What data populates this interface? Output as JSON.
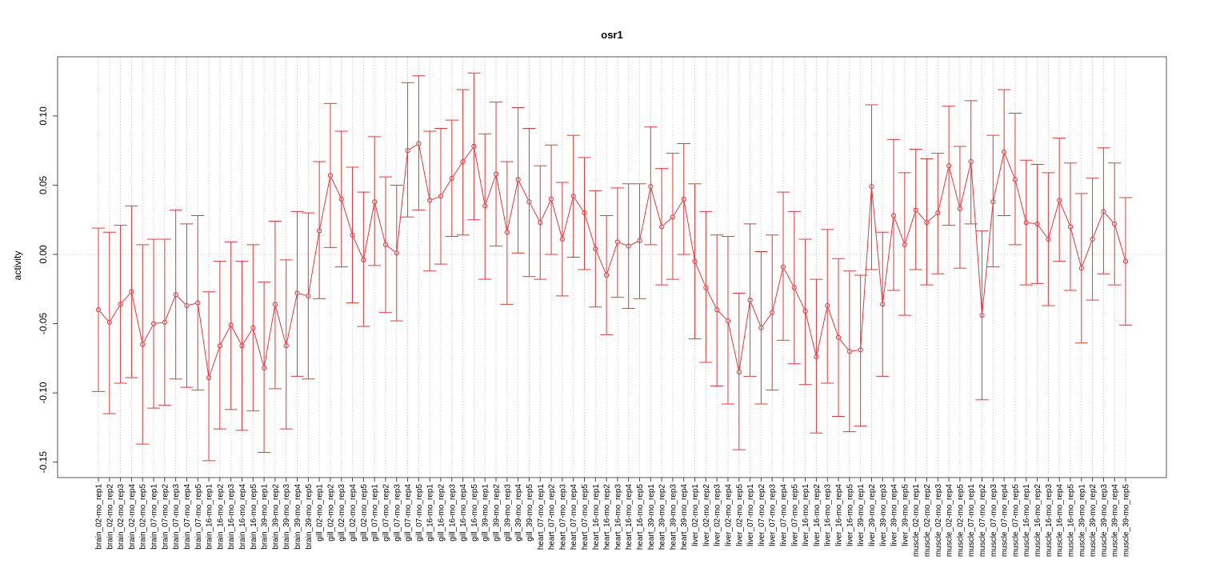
{
  "chart_data": {
    "type": "line",
    "title": "osr1",
    "xlabel": "",
    "ylabel": "activity",
    "ylim": [
      -0.16,
      0.14
    ],
    "yticks": [
      -0.15,
      -0.1,
      -0.05,
      0.0,
      0.05,
      0.1
    ],
    "ytick_labels": [
      "-0.15",
      "-0.10",
      "-0.05",
      "0.00",
      "0.05",
      "0.10"
    ],
    "grid": true,
    "legend": "none",
    "series_color": "#e8373c",
    "categories": [
      "brain_02-mo_rep1",
      "brain_02-mo_rep2",
      "brain_02-mo_rep3",
      "brain_02-mo_rep4",
      "brain_02-mo_rep5",
      "brain_07-mo_rep1",
      "brain_07-mo_rep2",
      "brain_07-mo_rep3",
      "brain_07-mo_rep4",
      "brain_07-mo_rep5",
      "brain_16-mo_rep1",
      "brain_16-mo_rep2",
      "brain_16-mo_rep3",
      "brain_16-mo_rep4",
      "brain_16-mo_rep5",
      "brain_39-mo_rep1",
      "brain_39-mo_rep2",
      "brain_39-mo_rep3",
      "brain_39-mo_rep4",
      "brain_39-mo_rep5",
      "gill_02-mo_rep1",
      "gill_02-mo_rep2",
      "gill_02-mo_rep3",
      "gill_02-mo_rep4",
      "gill_02-mo_rep5",
      "gill_07-mo_rep1",
      "gill_07-mo_rep2",
      "gill_07-mo_rep3",
      "gill_07-mo_rep4",
      "gill_07-mo_rep5",
      "gill_16-mo_rep1",
      "gill_16-mo_rep2",
      "gill_16-mo_rep3",
      "gill_16-mo_rep4",
      "gill_16-mo_rep5",
      "gill_39-mo_rep1",
      "gill_39-mo_rep2",
      "gill_39-mo_rep3",
      "gill_39-mo_rep4",
      "gill_39-mo_rep5",
      "heart_07-mo_rep1",
      "heart_07-mo_rep2",
      "heart_07-mo_rep3",
      "heart_07-mo_rep4",
      "heart_07-mo_rep5",
      "heart_16-mo_rep1",
      "heart_16-mo_rep2",
      "heart_16-mo_rep3",
      "heart_16-mo_rep4",
      "heart_16-mo_rep5",
      "heart_39-mo_rep1",
      "heart_39-mo_rep2",
      "heart_39-mo_rep3",
      "heart_39-mo_rep4",
      "liver_02-mo_rep1",
      "liver_02-mo_rep2",
      "liver_02-mo_rep3",
      "liver_02-mo_rep4",
      "liver_02-mo_rep5",
      "liver_07-mo_rep1",
      "liver_07-mo_rep2",
      "liver_07-mo_rep3",
      "liver_07-mo_rep4",
      "liver_07-mo_rep5",
      "liver_16-mo_rep1",
      "liver_16-mo_rep2",
      "liver_16-mo_rep3",
      "liver_16-mo_rep4",
      "liver_16-mo_rep5",
      "liver_39-mo_rep1",
      "liver_39-mo_rep2",
      "liver_39-mo_rep3",
      "liver_39-mo_rep4",
      "liver_39-mo_rep5",
      "muscle_02-mo_rep1",
      "muscle_02-mo_rep2",
      "muscle_02-mo_rep3",
      "muscle_02-mo_rep4",
      "muscle_02-mo_rep5",
      "muscle_07-mo_rep1",
      "muscle_07-mo_rep2",
      "muscle_07-mo_rep3",
      "muscle_07-mo_rep4",
      "muscle_07-mo_rep5",
      "muscle_16-mo_rep1",
      "muscle_16-mo_rep2",
      "muscle_16-mo_rep3",
      "muscle_16-mo_rep4",
      "muscle_16-mo_rep5",
      "muscle_39-mo_rep1",
      "muscle_39-mo_rep2",
      "muscle_39-mo_rep3",
      "muscle_39-mo_rep4",
      "muscle_39-mo_rep5"
    ],
    "values": [
      -0.04,
      -0.049,
      -0.036,
      -0.027,
      -0.065,
      -0.05,
      -0.049,
      -0.029,
      -0.037,
      -0.035,
      -0.089,
      -0.066,
      -0.051,
      -0.066,
      -0.053,
      -0.082,
      -0.036,
      -0.066,
      -0.028,
      -0.03,
      0.017,
      0.057,
      0.04,
      0.014,
      -0.004,
      0.038,
      0.007,
      0.001,
      0.075,
      0.08,
      0.039,
      0.042,
      0.055,
      0.067,
      0.078,
      0.035,
      0.058,
      0.016,
      0.054,
      0.038,
      0.023,
      0.04,
      0.011,
      0.042,
      0.03,
      0.004,
      -0.015,
      0.009,
      0.006,
      0.01,
      0.049,
      0.02,
      0.027,
      0.04,
      -0.005,
      -0.024,
      -0.04,
      -0.048,
      -0.085,
      -0.033,
      -0.053,
      -0.042,
      -0.009,
      -0.024,
      -0.041,
      -0.074,
      -0.037,
      -0.06,
      -0.07,
      -0.069,
      0.049,
      -0.036,
      0.028,
      0.007,
      0.032,
      0.023,
      0.03,
      0.064,
      0.033,
      0.067,
      -0.044,
      0.038,
      0.074,
      0.054,
      0.023,
      0.022,
      0.011,
      0.039,
      0.02,
      -0.01,
      0.011,
      0.031,
      0.022,
      -0.005
    ],
    "upper": [
      0.019,
      0.016,
      0.021,
      0.035,
      0.007,
      0.011,
      0.011,
      0.032,
      0.022,
      0.028,
      -0.027,
      -0.005,
      0.009,
      -0.005,
      0.007,
      -0.02,
      0.024,
      -0.004,
      0.031,
      0.03,
      0.067,
      0.109,
      0.089,
      0.063,
      0.045,
      0.085,
      0.056,
      0.05,
      0.124,
      0.129,
      0.089,
      0.091,
      0.097,
      0.119,
      0.131,
      0.087,
      0.11,
      0.067,
      0.106,
      0.091,
      0.064,
      0.079,
      0.052,
      0.086,
      0.07,
      0.046,
      0.028,
      0.048,
      0.051,
      0.051,
      0.092,
      0.062,
      0.073,
      0.08,
      0.051,
      0.031,
      0.014,
      0.013,
      -0.028,
      0.022,
      0.002,
      0.014,
      0.045,
      0.031,
      0.011,
      -0.018,
      0.018,
      -0.003,
      -0.012,
      -0.015,
      0.108,
      0.016,
      0.083,
      0.059,
      0.076,
      0.069,
      0.073,
      0.107,
      0.078,
      0.111,
      0.017,
      0.086,
      0.119,
      0.102,
      0.068,
      0.065,
      0.059,
      0.084,
      0.066,
      0.044,
      0.055,
      0.077,
      0.066,
      0.041
    ],
    "lower": [
      -0.099,
      -0.115,
      -0.093,
      -0.089,
      -0.137,
      -0.111,
      -0.109,
      -0.09,
      -0.096,
      -0.098,
      -0.149,
      -0.126,
      -0.112,
      -0.127,
      -0.113,
      -0.143,
      -0.097,
      -0.126,
      -0.088,
      -0.09,
      -0.032,
      0.005,
      -0.009,
      -0.035,
      -0.052,
      -0.008,
      -0.042,
      -0.048,
      0.027,
      0.032,
      -0.012,
      -0.007,
      0.013,
      0.014,
      0.025,
      -0.018,
      0.006,
      -0.036,
      0.001,
      -0.016,
      -0.018,
      0.0,
      -0.03,
      -0.002,
      -0.011,
      -0.038,
      -0.058,
      -0.031,
      -0.039,
      -0.032,
      0.007,
      -0.022,
      -0.018,
      0.0,
      -0.061,
      -0.078,
      -0.095,
      -0.108,
      -0.141,
      -0.088,
      -0.108,
      -0.098,
      -0.062,
      -0.079,
      -0.094,
      -0.129,
      -0.093,
      -0.117,
      -0.128,
      -0.124,
      -0.011,
      -0.088,
      -0.026,
      -0.044,
      -0.011,
      -0.022,
      -0.014,
      0.021,
      -0.01,
      0.022,
      -0.105,
      -0.009,
      0.028,
      0.007,
      -0.022,
      -0.021,
      -0.037,
      -0.005,
      -0.026,
      -0.064,
      -0.033,
      -0.014,
      -0.022,
      -0.051
    ]
  }
}
